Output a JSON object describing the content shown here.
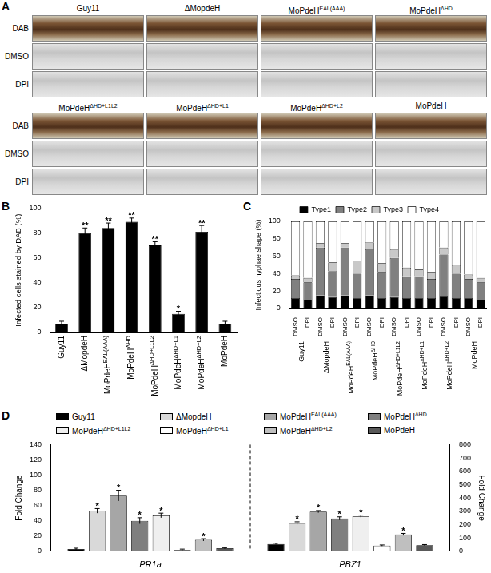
{
  "panel_a": {
    "panel": "A",
    "rows": [
      "DAB",
      "DMSO",
      "DPI"
    ],
    "blocks": [
      [
        {
          "text": "Guy11"
        },
        {
          "text": "ΔMopdeH"
        },
        {
          "text": "MoPdeH",
          "sup": "EAL(AAA)"
        },
        {
          "text": "MoPdeH",
          "sup": "ΔHD"
        }
      ],
      [
        {
          "text": "MoPdeH",
          "sup": "ΔHD+L1L2"
        },
        {
          "text": "MoPdeH",
          "sup": "ΔHD+L1"
        },
        {
          "text": "MoPdeH",
          "sup": "ΔHD+L2"
        },
        {
          "text": "MoPdeH"
        }
      ]
    ]
  },
  "chart_data": [
    {
      "panel": "B",
      "type": "bar",
      "y_label": "Infected cells stained by DAB (%)",
      "categories": [
        {
          "text": "Guy11"
        },
        {
          "text": "ΔMopdeH"
        },
        {
          "text": "MoPdeH",
          "sup": "EAL(AAA)"
        },
        {
          "text": "MoPdeH",
          "sup": "ΔHD"
        },
        {
          "text": "MoPdeH",
          "sup": "ΔHD+L1L2"
        },
        {
          "text": "MoPdeH",
          "sup": "ΔHD+L1"
        },
        {
          "text": "MoPdeH",
          "sup": "ΔHD+L2"
        },
        {
          "text": "MoPdeH"
        }
      ],
      "values": [
        7,
        80,
        84,
        89,
        70,
        15,
        81,
        7
      ],
      "errors": [
        2,
        4,
        4,
        3,
        3,
        2,
        5,
        2
      ],
      "significance": [
        null,
        "**",
        "**",
        "**",
        "**",
        "*",
        "**",
        null
      ],
      "color": "#000000",
      "ylim": [
        0,
        100
      ],
      "yticks": [
        0,
        20,
        40,
        60,
        80,
        100
      ],
      "grid": false
    },
    {
      "panel": "C",
      "type": "bar",
      "stacked": true,
      "y_label": "Infectious hyphae shape (%)",
      "categories": [
        "DMSO",
        "DPI",
        "DMSO",
        "DPI",
        "DMSO",
        "DPI",
        "DMSO",
        "DPI",
        "DMSO",
        "DPI",
        "DMSO",
        "DPI",
        "DMSO",
        "DPI",
        "DMSO",
        "DPI"
      ],
      "groups": [
        {
          "text": "Guy11"
        },
        {
          "text": "ΔMopdeH"
        },
        {
          "text": "MoPdeH",
          "sup": "EAL(AAA)"
        },
        {
          "text": "MoPdeH",
          "sup": "ΔHD"
        },
        {
          "text": "MoPdeH",
          "sup": "ΔHD+L1L2"
        },
        {
          "text": "MoPdeH",
          "sup": "ΔHD+L1"
        },
        {
          "text": "MoPdeH",
          "sup": "ΔHD+L2"
        },
        {
          "text": "MoPdeH"
        }
      ],
      "series": [
        {
          "name": "Type1",
          "color": "#000000",
          "values": [
            12,
            10,
            15,
            13,
            15,
            12,
            15,
            12,
            13,
            12,
            12,
            12,
            14,
            12,
            12,
            10
          ]
        },
        {
          "name": "Type2",
          "color": "#808080",
          "values": [
            22,
            20,
            55,
            30,
            55,
            28,
            53,
            30,
            45,
            25,
            25,
            22,
            48,
            28,
            22,
            20
          ]
        },
        {
          "name": "Type3",
          "color": "#c8c8c8",
          "values": [
            4,
            5,
            5,
            10,
            5,
            15,
            8,
            10,
            10,
            10,
            8,
            8,
            8,
            10,
            5,
            5
          ]
        },
        {
          "name": "Type4",
          "color": "#ffffff",
          "values": [
            62,
            65,
            25,
            47,
            25,
            45,
            24,
            48,
            32,
            53,
            55,
            58,
            30,
            50,
            61,
            65
          ]
        }
      ],
      "legend": "top",
      "ylim": [
        0,
        100
      ],
      "yticks": [
        0,
        20,
        40,
        60,
        80,
        100
      ],
      "grid": false
    },
    {
      "panel": "D",
      "type": "bar",
      "y_label": "Fold Change",
      "y2_label": "Fold Change",
      "categories": [
        "PR1a",
        "PBZ1"
      ],
      "ylim": [
        0,
        140
      ],
      "yticks": [
        0,
        20,
        40,
        60,
        80,
        100,
        120,
        140
      ],
      "y2lim": [
        0,
        800
      ],
      "y2ticks": [
        0,
        100,
        200,
        300,
        400,
        500,
        600,
        700,
        800
      ],
      "legend": "top",
      "grid": false,
      "series": [
        {
          "name": {
            "text": "Guy11"
          },
          "color": "#000000",
          "values": [
            3,
            null
          ],
          "errors": [
            1,
            null
          ],
          "significance": [
            null,
            null
          ]
        },
        {
          "name": {
            "text": "ΔMopdeH"
          },
          "color": "#d9d9d9",
          "values": [
            53,
            null
          ],
          "errors": [
            3,
            null
          ],
          "significance": [
            "*",
            null
          ]
        },
        {
          "name": {
            "text": "MoPdeH",
            "sup": "EAL(AAA)"
          },
          "color": "#a6a6a6",
          "values": [
            73,
            null
          ],
          "errors": [
            7,
            null
          ],
          "significance": [
            "*",
            null
          ]
        },
        {
          "name": {
            "text": "MoPdeH",
            "sup": "ΔHD"
          },
          "color": "#7f7f7f",
          "values": [
            40,
            null
          ],
          "errors": [
            4,
            null
          ],
          "significance": [
            "*",
            null
          ]
        },
        {
          "name": {
            "text": "MoPdeH",
            "sup": "ΔHD+L1L2"
          },
          "color": "#efefef",
          "values": [
            47,
            null
          ],
          "errors": [
            3,
            null
          ],
          "significance": [
            "*",
            null
          ]
        },
        {
          "name": {
            "text": "MoPdeH",
            "sup": "ΔHD+L1"
          },
          "color": "#ffffff",
          "values": [
            2,
            null
          ],
          "errors": [
            0.8,
            null
          ],
          "significance": [
            null,
            null
          ]
        },
        {
          "name": {
            "text": "MoPdeH",
            "sup": "ΔHD+L2"
          },
          "color": "#bfbfbf",
          "values": [
            15,
            null
          ],
          "errors": [
            1.5,
            null
          ],
          "significance": [
            "*",
            null
          ]
        },
        {
          "name": {
            "text": "MoPdeH"
          },
          "color": "#595959",
          "values": [
            4,
            null
          ],
          "errors": [
            0.7,
            null
          ],
          "significance": [
            null,
            null
          ]
        },
        {
          "name": {
            "text": "Guy11"
          },
          "axis": "y2",
          "color": "#000000",
          "values": [
            null,
            55
          ],
          "errors": [
            null,
            5
          ],
          "significance": [
            null,
            null
          ]
        },
        {
          "name": {
            "text": "ΔMopdeH"
          },
          "axis": "y2",
          "color": "#d9d9d9",
          "values": [
            null,
            211
          ],
          "errors": [
            null,
            10
          ],
          "significance": [
            null,
            "*"
          ]
        },
        {
          "name": {
            "text": "MoPdeH",
            "sup": "EAL(AAA)"
          },
          "axis": "y2",
          "color": "#a6a6a6",
          "values": [
            null,
            297
          ],
          "errors": [
            null,
            8
          ],
          "significance": [
            null,
            "*"
          ]
        },
        {
          "name": {
            "text": "MoPdeH",
            "sup": "ΔHD"
          },
          "axis": "y2",
          "color": "#7f7f7f",
          "values": [
            null,
            246
          ],
          "errors": [
            null,
            12
          ],
          "significance": [
            null,
            "*"
          ]
        },
        {
          "name": {
            "text": "MoPdeH",
            "sup": "ΔHD+L1L2"
          },
          "axis": "y2",
          "color": "#efefef",
          "values": [
            null,
            263
          ],
          "errors": [
            null,
            8
          ],
          "significance": [
            null,
            "*"
          ]
        },
        {
          "name": {
            "text": "MoPdeH",
            "sup": "ΔHD+L1"
          },
          "axis": "y2",
          "color": "#ffffff",
          "values": [
            null,
            43
          ],
          "errors": [
            null,
            4
          ],
          "significance": [
            null,
            null
          ]
        },
        {
          "name": {
            "text": "MoPdeH",
            "sup": "ΔHD+L2"
          },
          "axis": "y2",
          "color": "#bfbfbf",
          "values": [
            null,
            126
          ],
          "errors": [
            null,
            8
          ],
          "significance": [
            null,
            "*"
          ]
        },
        {
          "name": {
            "text": "MoPdeH"
          },
          "axis": "y2",
          "color": "#595959",
          "values": [
            null,
            46
          ],
          "errors": [
            null,
            4
          ],
          "significance": [
            null,
            null
          ]
        }
      ]
    }
  ]
}
